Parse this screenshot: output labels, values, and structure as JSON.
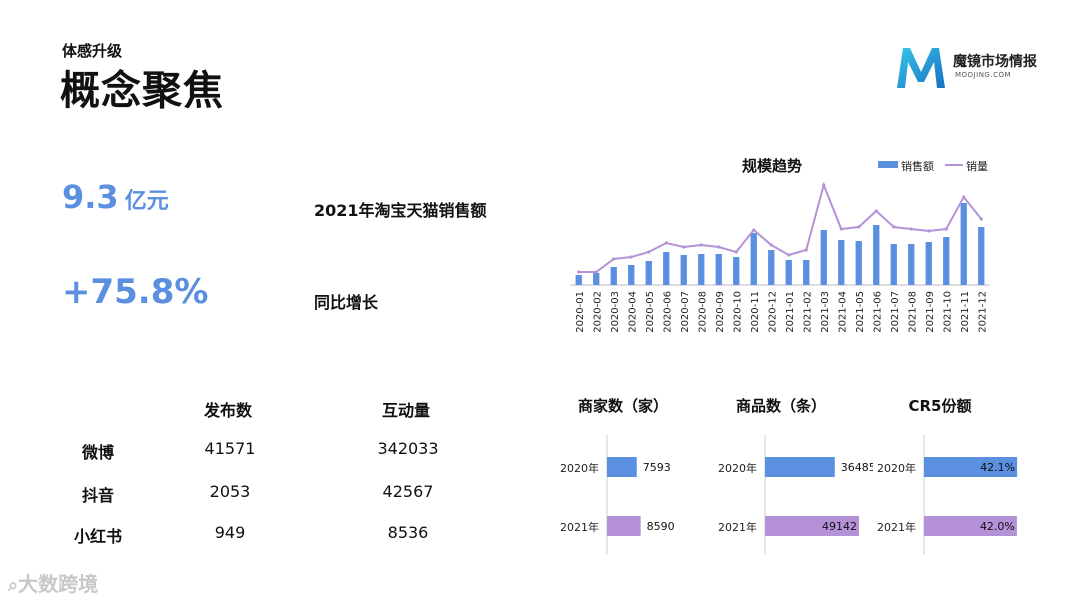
{
  "header": {
    "subtitle": "体感升级",
    "title": "概念聚焦"
  },
  "brand": {
    "name": "魔镜市场情报",
    "english": "MOOJING.COM"
  },
  "kpis": [
    {
      "value": "9.3",
      "unit": "亿元",
      "label": "2021年淘宝天猫销售额"
    },
    {
      "value": "+75.8%",
      "unit": "",
      "label": "同比增长"
    }
  ],
  "social_table": {
    "headers": [
      "发布数",
      "互动量"
    ],
    "rows": [
      {
        "platform": "微博",
        "posts": "41571",
        "interactions": "342033"
      },
      {
        "platform": "抖音",
        "posts": "2053",
        "interactions": "42567"
      },
      {
        "platform": "小红书",
        "posts": "949",
        "interactions": "8536"
      }
    ]
  },
  "watermark": "大数跨境",
  "colors": {
    "kpi": "#5b8fe0",
    "bar": "#5b8fe0",
    "line": "#b592d8",
    "bar2021": "#b592d8"
  },
  "chart_data": [
    {
      "type": "bar",
      "title": "规模趋势",
      "categories": [
        "2020-01",
        "2020-02",
        "2020-03",
        "2020-04",
        "2020-05",
        "2020-06",
        "2020-07",
        "2020-08",
        "2020-09",
        "2020-10",
        "2020-11",
        "2020-12",
        "2021-01",
        "2021-02",
        "2021-03",
        "2021-04",
        "2021-05",
        "2021-06",
        "2021-07",
        "2021-08",
        "2021-09",
        "2021-10",
        "2021-11",
        "2021-12"
      ],
      "series": [
        {
          "name": "销售额",
          "kind": "bar",
          "values": [
            10,
            12,
            18,
            20,
            24,
            33,
            30,
            31,
            31,
            28,
            52,
            35,
            25,
            25,
            55,
            45,
            44,
            60,
            41,
            41,
            43,
            48,
            82,
            58
          ]
        },
        {
          "name": "销量",
          "kind": "line",
          "values": [
            13,
            13,
            26,
            28,
            33,
            42,
            38,
            40,
            38,
            33,
            55,
            40,
            30,
            35,
            100,
            56,
            58,
            74,
            58,
            56,
            54,
            56,
            88,
            66
          ]
        }
      ],
      "ylim": [
        0,
        110
      ],
      "legend": "top-right"
    },
    {
      "type": "bar",
      "title": "商家数（家）",
      "categories": [
        "2020年",
        "2021年"
      ],
      "values": [
        7593,
        8590
      ],
      "labels": [
        "7593",
        "8590"
      ],
      "xlim": [
        0,
        24000
      ]
    },
    {
      "type": "bar",
      "title": "商品数（条）",
      "categories": [
        "2020年",
        "2021年"
      ],
      "values": [
        36485,
        49142
      ],
      "labels": [
        "36485",
        "49142"
      ],
      "xlim": [
        0,
        49142
      ]
    },
    {
      "type": "bar",
      "title": "CR5份额",
      "categories": [
        "2020年",
        "2021年"
      ],
      "values": [
        42.1,
        42.0
      ],
      "labels": [
        "42.1%",
        "42.0%"
      ],
      "xlim": [
        0,
        42.5
      ]
    }
  ]
}
